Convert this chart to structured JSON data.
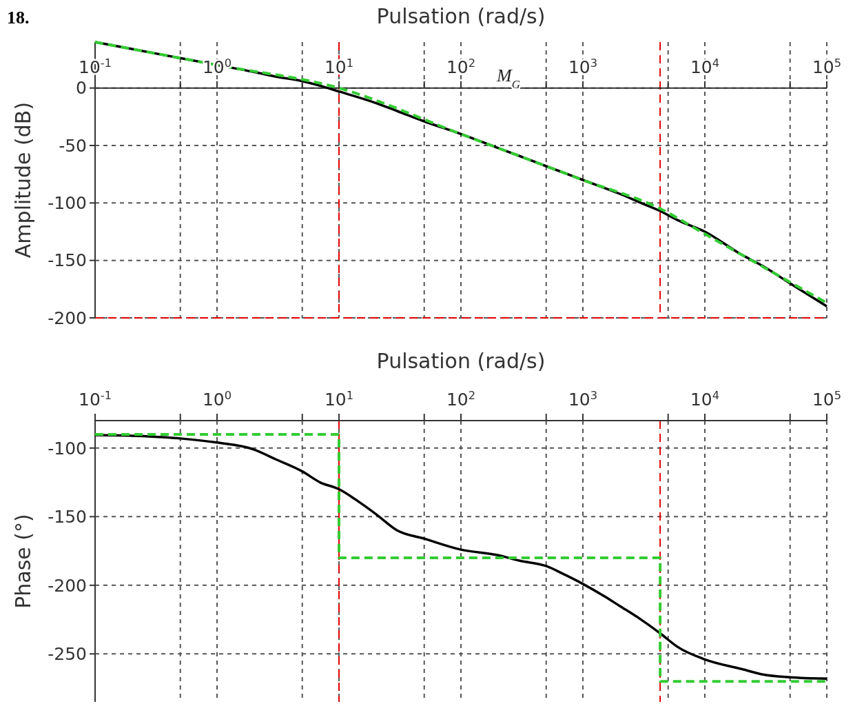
{
  "chart_data": [
    {
      "type": "line",
      "xlabel": "Pulsation (rad/s)",
      "ylabel": "Amplitude (dB)",
      "log": "x",
      "xlim": [
        0.1,
        100000
      ],
      "ylim": [
        -200,
        40
      ],
      "xticks": [
        {
          "value": 0.1,
          "label": "10$^{-1}$"
        },
        {
          "value": 0.5,
          "label": null
        },
        {
          "value": 1,
          "label": "10$^{0}$"
        },
        {
          "value": 5,
          "label": null
        },
        {
          "value": 10,
          "label": "10$^{1}$"
        },
        {
          "value": 50,
          "label": null
        },
        {
          "value": 100,
          "label": "10$^{2}$"
        },
        {
          "value": 500,
          "label": null
        },
        {
          "value": 1000,
          "label": "10$^{3}$"
        },
        {
          "value": 5000,
          "label": null
        },
        {
          "value": 10000,
          "label": "10$^{4}$"
        },
        {
          "value": 50000,
          "label": null
        },
        {
          "value": 100000,
          "label": "10$^{5}$"
        }
      ],
      "yticks": [
        -200,
        -150,
        -100,
        -50,
        0
      ],
      "grid": true,
      "series": [
        {
          "type": "line",
          "color": "#000000",
          "line_style": "solid",
          "x": [
            0.1,
            0.2,
            0.5,
            1,
            2,
            3,
            5,
            7,
            10,
            20,
            30,
            50,
            100,
            200,
            300,
            500,
            1000,
            2000,
            3000,
            4300,
            6000,
            10000,
            20000,
            30000,
            50000,
            100000
          ],
          "values": [
            40,
            34,
            26,
            20,
            14,
            10,
            6,
            2,
            -3,
            -13,
            -20,
            -29,
            -40,
            -52,
            -59,
            -68,
            -80,
            -92,
            -100,
            -107,
            -115,
            -125,
            -145,
            -155,
            -170,
            -190
          ]
        },
        {
          "type": "line",
          "color": "#33cc33",
          "line_style": "dashed",
          "x": [
            0.1,
            1,
            10,
            100,
            1000,
            4300,
            10000,
            100000
          ],
          "values": [
            40,
            20,
            0,
            -40,
            -80,
            -105,
            -127,
            -187
          ]
        }
      ],
      "ref_lines": [
        {
          "axis": "x",
          "value": 10,
          "color": "#e00000",
          "line_style": "dashed"
        },
        {
          "axis": "x",
          "value": 4300,
          "color": "#e00000",
          "line_style": "dashed"
        },
        {
          "axis": "y",
          "value": -200,
          "color": "#e00000",
          "line_style": "dashed"
        }
      ],
      "annotations": [
        "18.",
        "M$_{G}$"
      ]
    },
    {
      "type": "line",
      "xlabel": "Pulsation (rad/s)",
      "ylabel": "Phase (°)",
      "log": "x",
      "xlim": [
        0.1,
        100000
      ],
      "ylim": [
        -285,
        -80
      ],
      "xticks": [
        {
          "value": 0.1,
          "label": "10$^{-1}$"
        },
        {
          "value": 0.5,
          "label": null
        },
        {
          "value": 1,
          "label": "10$^{0}$"
        },
        {
          "value": 5,
          "label": null
        },
        {
          "value": 10,
          "label": "10$^{1}$"
        },
        {
          "value": 50,
          "label": null
        },
        {
          "value": 100,
          "label": "10$^{2}$"
        },
        {
          "value": 500,
          "label": null
        },
        {
          "value": 1000,
          "label": "10$^{3}$"
        },
        {
          "value": 5000,
          "label": null
        },
        {
          "value": 10000,
          "label": "10$^{4}$"
        },
        {
          "value": 50000,
          "label": null
        },
        {
          "value": 100000,
          "label": "10$^{5}$"
        }
      ],
      "yticks": [
        -250,
        -200,
        -150,
        -100
      ],
      "grid": true,
      "series": [
        {
          "type": "line",
          "color": "#000000",
          "line_style": "solid",
          "x": [
            0.1,
            0.2,
            0.5,
            1,
            2,
            3,
            5,
            7,
            10,
            15,
            20,
            30,
            50,
            100,
            200,
            300,
            500,
            700,
            1000,
            1500,
            2000,
            3000,
            4300,
            6000,
            10000,
            20000,
            30000,
            50000,
            100000
          ],
          "values": [
            -90.6,
            -91,
            -93,
            -96,
            -101,
            -108,
            -117,
            -125,
            -130,
            -140,
            -148,
            -160,
            -166,
            -174,
            -178,
            -182,
            -186,
            -192,
            -199,
            -208,
            -215,
            -225,
            -235,
            -245,
            -254,
            -261,
            -265,
            -267,
            -268
          ]
        },
        {
          "type": "step",
          "color": "#33cc33",
          "line_style": "dashed",
          "x": [
            0.1,
            10,
            4300,
            100000
          ],
          "values": [
            -90,
            -180,
            -270,
            -270
          ]
        }
      ],
      "ref_lines": [
        {
          "axis": "x",
          "value": 10,
          "color": "#e00000",
          "line_style": "dashed"
        },
        {
          "axis": "x",
          "value": 4300,
          "color": "#e00000",
          "line_style": "dashed"
        }
      ]
    }
  ]
}
